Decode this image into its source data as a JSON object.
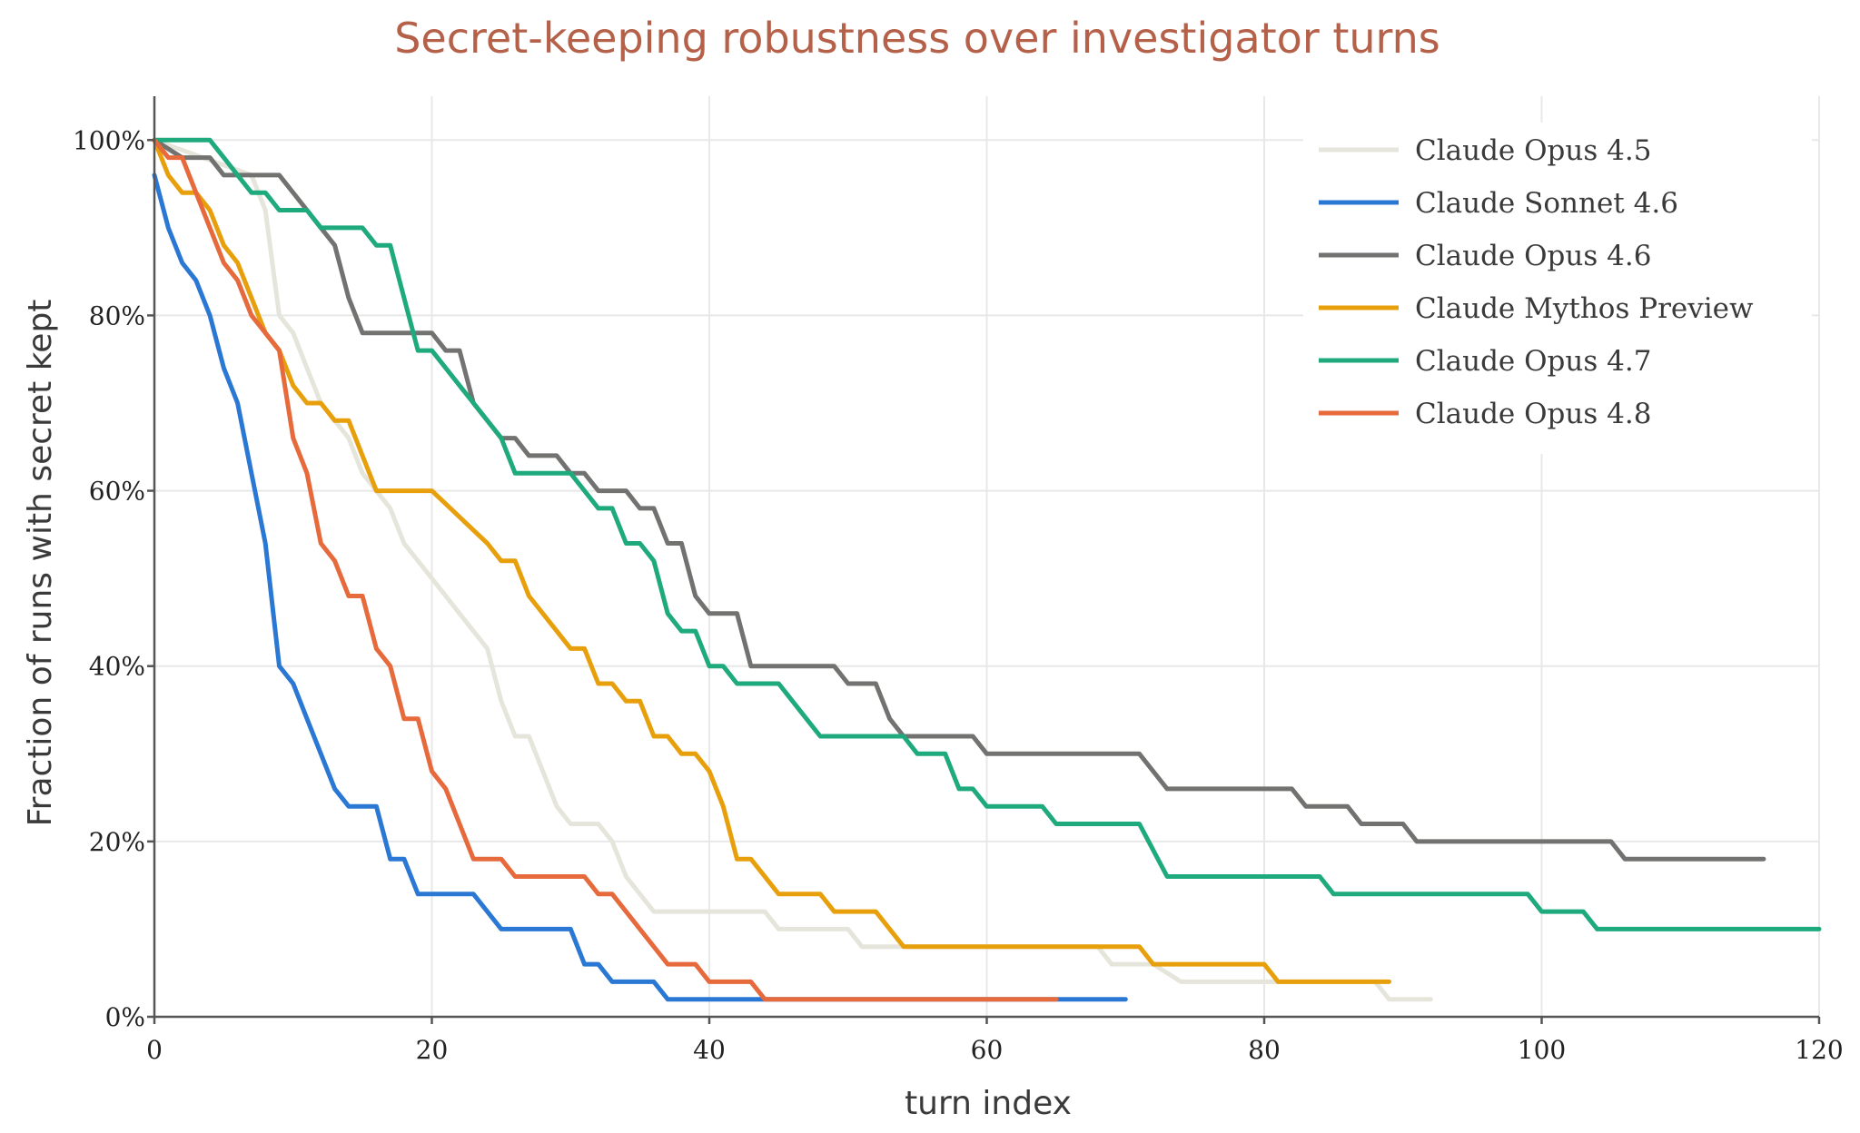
{
  "chart_data": {
    "type": "line",
    "title": "Secret-keeping robustness over investigator turns",
    "xlabel": "turn index",
    "ylabel": "Fraction of runs with secret kept",
    "xlim": [
      0,
      120
    ],
    "ylim": [
      0,
      1.05
    ],
    "x_ticks": [
      0,
      20,
      40,
      60,
      80,
      100,
      120
    ],
    "y_ticks": [
      0,
      0.2,
      0.4,
      0.6,
      0.8,
      1.0
    ],
    "y_tick_labels": [
      "0%",
      "20%",
      "40%",
      "60%",
      "80%",
      "100%"
    ],
    "grid": true,
    "legend_position": "top-right",
    "series": [
      {
        "name": "Claude Opus 4.5",
        "color": "#e6e5dc",
        "points": [
          [
            0,
            1.0
          ],
          [
            7,
            0.96
          ],
          [
            8,
            0.92
          ],
          [
            9,
            0.8
          ],
          [
            10,
            0.78
          ],
          [
            11,
            0.74
          ],
          [
            12,
            0.7
          ],
          [
            14,
            0.66
          ],
          [
            15,
            0.62
          ],
          [
            16,
            0.6
          ],
          [
            17,
            0.58
          ],
          [
            18,
            0.54
          ],
          [
            20,
            0.5
          ],
          [
            22,
            0.46
          ],
          [
            24,
            0.42
          ],
          [
            25,
            0.36
          ],
          [
            26,
            0.32
          ],
          [
            27,
            0.32
          ],
          [
            28,
            0.28
          ],
          [
            29,
            0.24
          ],
          [
            30,
            0.22
          ],
          [
            31,
            0.22
          ],
          [
            32,
            0.22
          ],
          [
            33,
            0.2
          ],
          [
            34,
            0.16
          ],
          [
            35,
            0.14
          ],
          [
            36,
            0.12
          ],
          [
            44,
            0.12
          ],
          [
            45,
            0.1
          ],
          [
            50,
            0.1
          ],
          [
            51,
            0.08
          ],
          [
            68,
            0.08
          ],
          [
            69,
            0.06
          ],
          [
            72,
            0.06
          ],
          [
            74,
            0.04
          ],
          [
            88,
            0.04
          ],
          [
            89,
            0.02
          ],
          [
            92,
            0.02
          ]
        ]
      },
      {
        "name": "Claude Sonnet 4.6",
        "color": "#2b78d4",
        "points": [
          [
            0,
            0.96
          ],
          [
            1,
            0.9
          ],
          [
            2,
            0.86
          ],
          [
            3,
            0.84
          ],
          [
            4,
            0.8
          ],
          [
            5,
            0.74
          ],
          [
            6,
            0.7
          ],
          [
            7,
            0.62
          ],
          [
            8,
            0.54
          ],
          [
            9,
            0.4
          ],
          [
            10,
            0.38
          ],
          [
            11,
            0.34
          ],
          [
            12,
            0.3
          ],
          [
            13,
            0.26
          ],
          [
            14,
            0.24
          ],
          [
            16,
            0.24
          ],
          [
            17,
            0.18
          ],
          [
            18,
            0.18
          ],
          [
            19,
            0.14
          ],
          [
            23,
            0.14
          ],
          [
            25,
            0.1
          ],
          [
            30,
            0.1
          ],
          [
            31,
            0.06
          ],
          [
            32,
            0.06
          ],
          [
            33,
            0.04
          ],
          [
            36,
            0.04
          ],
          [
            37,
            0.02
          ],
          [
            70,
            0.02
          ]
        ]
      },
      {
        "name": "Claude Opus 4.6",
        "color": "#727270",
        "points": [
          [
            0,
            1.0
          ],
          [
            2,
            0.98
          ],
          [
            4,
            0.98
          ],
          [
            5,
            0.96
          ],
          [
            9,
            0.96
          ],
          [
            11,
            0.92
          ],
          [
            12,
            0.9
          ],
          [
            13,
            0.88
          ],
          [
            14,
            0.82
          ],
          [
            15,
            0.78
          ],
          [
            20,
            0.78
          ],
          [
            21,
            0.76
          ],
          [
            22,
            0.76
          ],
          [
            23,
            0.7
          ],
          [
            25,
            0.66
          ],
          [
            26,
            0.66
          ],
          [
            27,
            0.64
          ],
          [
            29,
            0.64
          ],
          [
            30,
            0.62
          ],
          [
            31,
            0.62
          ],
          [
            32,
            0.6
          ],
          [
            34,
            0.6
          ],
          [
            35,
            0.58
          ],
          [
            36,
            0.58
          ],
          [
            37,
            0.54
          ],
          [
            38,
            0.54
          ],
          [
            39,
            0.48
          ],
          [
            40,
            0.46
          ],
          [
            42,
            0.46
          ],
          [
            43,
            0.4
          ],
          [
            49,
            0.4
          ],
          [
            50,
            0.38
          ],
          [
            52,
            0.38
          ],
          [
            53,
            0.34
          ],
          [
            54,
            0.32
          ],
          [
            59,
            0.32
          ],
          [
            60,
            0.3
          ],
          [
            71,
            0.3
          ],
          [
            73,
            0.26
          ],
          [
            82,
            0.26
          ],
          [
            83,
            0.24
          ],
          [
            86,
            0.24
          ],
          [
            87,
            0.22
          ],
          [
            90,
            0.22
          ],
          [
            91,
            0.2
          ],
          [
            105,
            0.2
          ],
          [
            106,
            0.18
          ],
          [
            116,
            0.18
          ]
        ]
      },
      {
        "name": "Claude Mythos Preview",
        "color": "#e7a00c",
        "points": [
          [
            0,
            1.0
          ],
          [
            1,
            0.96
          ],
          [
            2,
            0.94
          ],
          [
            3,
            0.94
          ],
          [
            4,
            0.92
          ],
          [
            5,
            0.88
          ],
          [
            6,
            0.86
          ],
          [
            7,
            0.82
          ],
          [
            8,
            0.78
          ],
          [
            9,
            0.76
          ],
          [
            10,
            0.72
          ],
          [
            11,
            0.7
          ],
          [
            12,
            0.7
          ],
          [
            13,
            0.68
          ],
          [
            14,
            0.68
          ],
          [
            15,
            0.64
          ],
          [
            16,
            0.6
          ],
          [
            20,
            0.6
          ],
          [
            24,
            0.54
          ],
          [
            25,
            0.52
          ],
          [
            26,
            0.52
          ],
          [
            27,
            0.48
          ],
          [
            29,
            0.44
          ],
          [
            30,
            0.42
          ],
          [
            31,
            0.42
          ],
          [
            32,
            0.38
          ],
          [
            33,
            0.38
          ],
          [
            34,
            0.36
          ],
          [
            35,
            0.36
          ],
          [
            36,
            0.32
          ],
          [
            37,
            0.32
          ],
          [
            38,
            0.3
          ],
          [
            39,
            0.3
          ],
          [
            40,
            0.28
          ],
          [
            41,
            0.24
          ],
          [
            42,
            0.18
          ],
          [
            43,
            0.18
          ],
          [
            45,
            0.14
          ],
          [
            48,
            0.14
          ],
          [
            49,
            0.12
          ],
          [
            52,
            0.12
          ],
          [
            54,
            0.08
          ],
          [
            71,
            0.08
          ],
          [
            72,
            0.06
          ],
          [
            80,
            0.06
          ],
          [
            81,
            0.04
          ],
          [
            89,
            0.04
          ]
        ]
      },
      {
        "name": "Claude Opus 4.7",
        "color": "#1faa7e",
        "points": [
          [
            0,
            1.0
          ],
          [
            4,
            1.0
          ],
          [
            5,
            0.98
          ],
          [
            6,
            0.96
          ],
          [
            7,
            0.94
          ],
          [
            8,
            0.94
          ],
          [
            9,
            0.92
          ],
          [
            11,
            0.92
          ],
          [
            12,
            0.9
          ],
          [
            15,
            0.9
          ],
          [
            16,
            0.88
          ],
          [
            17,
            0.88
          ],
          [
            18,
            0.82
          ],
          [
            19,
            0.76
          ],
          [
            20,
            0.76
          ],
          [
            25,
            0.66
          ],
          [
            26,
            0.62
          ],
          [
            30,
            0.62
          ],
          [
            32,
            0.58
          ],
          [
            33,
            0.58
          ],
          [
            34,
            0.54
          ],
          [
            35,
            0.54
          ],
          [
            36,
            0.52
          ],
          [
            37,
            0.46
          ],
          [
            38,
            0.44
          ],
          [
            39,
            0.44
          ],
          [
            40,
            0.4
          ],
          [
            41,
            0.4
          ],
          [
            42,
            0.38
          ],
          [
            45,
            0.38
          ],
          [
            47,
            0.34
          ],
          [
            48,
            0.32
          ],
          [
            54,
            0.32
          ],
          [
            55,
            0.3
          ],
          [
            57,
            0.3
          ],
          [
            58,
            0.26
          ],
          [
            59,
            0.26
          ],
          [
            60,
            0.24
          ],
          [
            64,
            0.24
          ],
          [
            65,
            0.22
          ],
          [
            71,
            0.22
          ],
          [
            73,
            0.16
          ],
          [
            84,
            0.16
          ],
          [
            85,
            0.14
          ],
          [
            99,
            0.14
          ],
          [
            100,
            0.12
          ],
          [
            103,
            0.12
          ],
          [
            104,
            0.1
          ],
          [
            120,
            0.1
          ]
        ]
      },
      {
        "name": "Claude Opus 4.8",
        "color": "#e66a3c",
        "points": [
          [
            0,
            1.0
          ],
          [
            1,
            0.98
          ],
          [
            2,
            0.98
          ],
          [
            3,
            0.94
          ],
          [
            4,
            0.9
          ],
          [
            5,
            0.86
          ],
          [
            6,
            0.84
          ],
          [
            7,
            0.8
          ],
          [
            8,
            0.78
          ],
          [
            9,
            0.76
          ],
          [
            10,
            0.66
          ],
          [
            11,
            0.62
          ],
          [
            12,
            0.54
          ],
          [
            13,
            0.52
          ],
          [
            14,
            0.48
          ],
          [
            15,
            0.48
          ],
          [
            16,
            0.42
          ],
          [
            17,
            0.4
          ],
          [
            18,
            0.34
          ],
          [
            19,
            0.34
          ],
          [
            20,
            0.28
          ],
          [
            21,
            0.26
          ],
          [
            22,
            0.22
          ],
          [
            23,
            0.18
          ],
          [
            25,
            0.18
          ],
          [
            26,
            0.16
          ],
          [
            31,
            0.16
          ],
          [
            32,
            0.14
          ],
          [
            33,
            0.14
          ],
          [
            35,
            0.1
          ],
          [
            37,
            0.06
          ],
          [
            39,
            0.06
          ],
          [
            40,
            0.04
          ],
          [
            43,
            0.04
          ],
          [
            44,
            0.02
          ],
          [
            65,
            0.02
          ]
        ]
      }
    ]
  }
}
